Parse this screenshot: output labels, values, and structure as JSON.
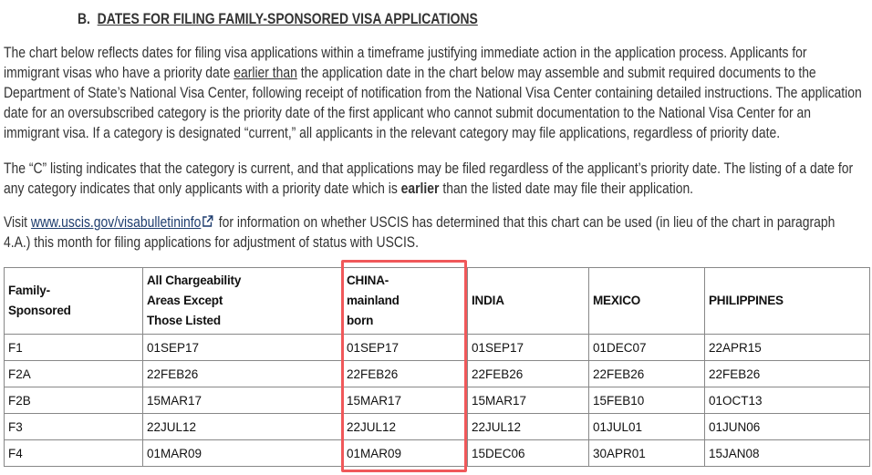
{
  "section": {
    "letter": "B.",
    "title": "DATES FOR FILING FAMILY-SPONSORED VISA APPLICATIONS"
  },
  "paragraph1": {
    "before": "The chart below reflects dates for filing visa applications within a timeframe justifying immediate action in the application process. Applicants for immigrant visas who have a priority date ",
    "underlined": "earlier than",
    "after": " the application date in the chart below may assemble and submit required documents to the Department of State’s National Visa Center, following receipt of notification from the National Visa Center containing detailed instructions. The application date for an oversubscribed category is the priority date of the first applicant who cannot submit documentation to the National Visa Center for an immigrant visa. If a category is designated “current,” all applicants in the relevant category may file applications, regardless of priority date."
  },
  "paragraph2": {
    "before": "The “C” listing indicates that the category is current, and that applications may be filed regardless of the applicant’s priority date. The listing of a date for any category indicates that only applicants with a priority date which is ",
    "bold": "earlier",
    "after": " than the listed date may file their application."
  },
  "paragraph3": {
    "before": "Visit ",
    "link": "www.uscis.gov/visabulletininfo",
    "link_icon": "external-link-icon",
    "after": " for information on whether USCIS has determined that this chart can be used (in lieu of the chart in paragraph 4.A.) this month for filing applications for adjustment of status with USCIS."
  },
  "table": {
    "headers": [
      [
        "Family-",
        "Sponsored"
      ],
      [
        "All Chargeability",
        "Areas Except",
        "Those Listed"
      ],
      [
        "CHINA-",
        "mainland",
        "born"
      ],
      [
        "INDIA"
      ],
      [
        "MEXICO"
      ],
      [
        "PHILIPPINES"
      ]
    ],
    "rows": [
      [
        "F1",
        "01SEP17",
        "01SEP17",
        "01SEP17",
        "01DEC07",
        "22APR15"
      ],
      [
        "F2A",
        "22FEB26",
        "22FEB26",
        "22FEB26",
        "22FEB26",
        "22FEB26"
      ],
      [
        "F2B",
        "15MAR17",
        "15MAR17",
        "15MAR17",
        "15FEB10",
        "01OCT13"
      ],
      [
        "F3",
        "22JUL12",
        "22JUL12",
        "22JUL12",
        "01JUL01",
        "01JUN06"
      ],
      [
        "F4",
        "01MAR09",
        "01MAR09",
        "15DEC06",
        "30APR01",
        "15JAN08"
      ]
    ],
    "highlight_color": "#f0585a",
    "highlighted_column": "CHINA-mainland born"
  }
}
